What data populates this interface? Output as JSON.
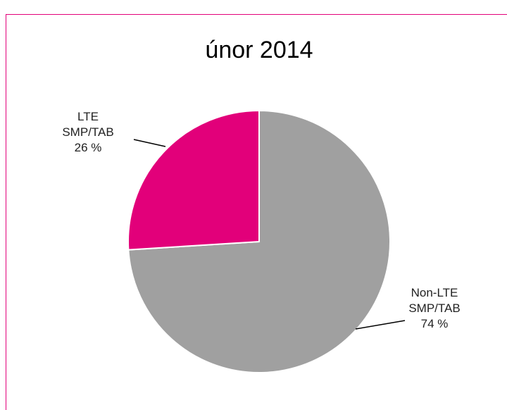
{
  "chart_data": {
    "type": "pie",
    "title": "únor 2014",
    "categories": [
      "Non-LTE SMP/TAB",
      "LTE SMP/TAB"
    ],
    "values": [
      74,
      26
    ],
    "value_labels": [
      "74 %",
      "26 %"
    ],
    "colors": [
      "#a0a0a0",
      "#e2007a"
    ]
  }
}
